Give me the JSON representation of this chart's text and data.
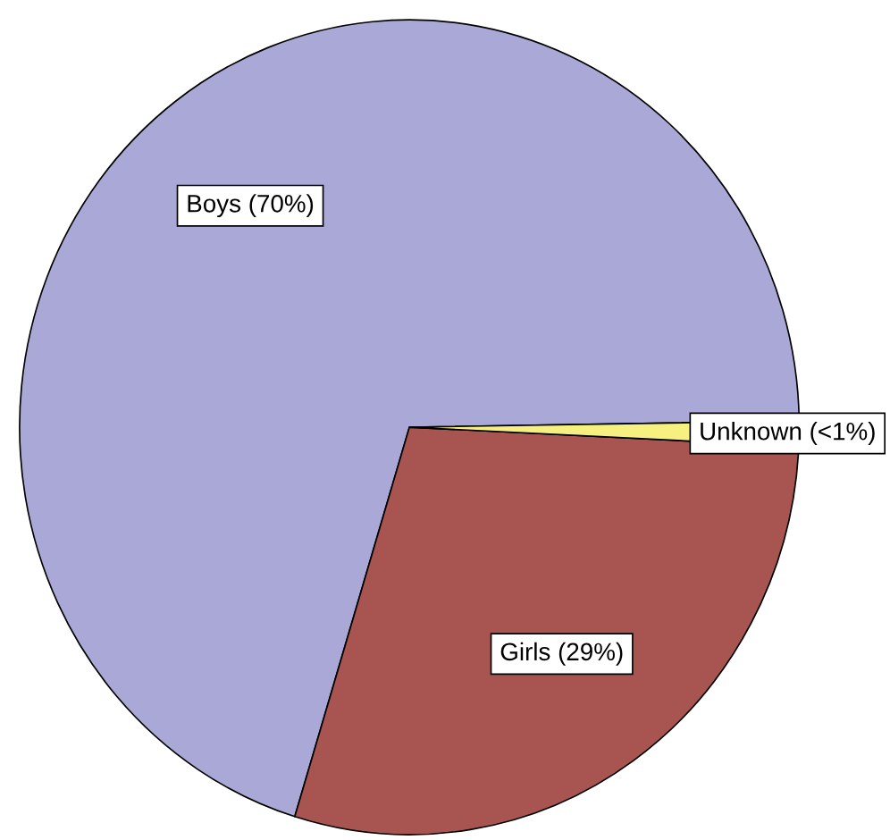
{
  "chart_data": {
    "type": "pie",
    "categories": [
      "Boys (70%)",
      "Girls (29%)",
      "Unknown (<1%)"
    ],
    "values": [
      70,
      29,
      1
    ],
    "colors": [
      "#aaa8d6",
      "#a85552",
      "#f5f080"
    ]
  }
}
